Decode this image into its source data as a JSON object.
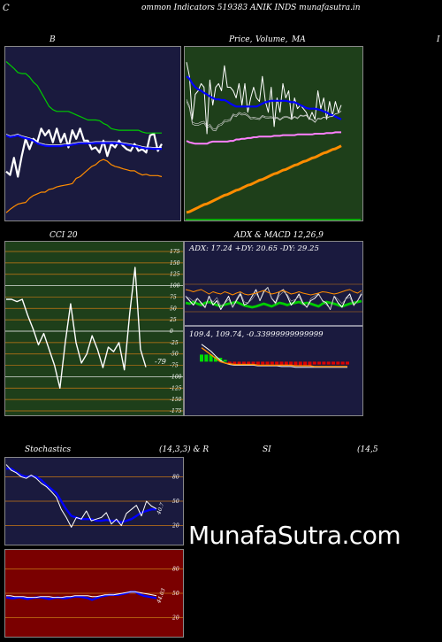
{
  "header": {
    "text": "ommon  Indicators 519383 ANIK INDS munafasutra.in",
    "left_glyph": "C",
    "right_glyph": "I"
  },
  "colors": {
    "navy": "#1a1a3e",
    "green_bg": "#1e3f1a",
    "red_bg": "#7a0000",
    "white_line": "#ffffff",
    "blue_line": "#0000ff",
    "orange_line": "#ff8c00",
    "green_line": "#00cc00",
    "pink_line": "#ff80ff",
    "grid_orange": "#c87814",
    "grid_white": "#ffffff"
  },
  "panels": {
    "bollinger": {
      "title": "B"
    },
    "price": {
      "title_a": "Price,",
      "title_b": "Volume,",
      "title_c": "MA"
    },
    "cci": {
      "title": "CCI 20",
      "ticks": [
        "175",
        "150",
        "125",
        "100",
        "75",
        "50",
        "25",
        "0",
        "-25",
        "-50",
        "-75",
        "-100",
        "-125",
        "-150",
        "-175"
      ],
      "last_label": "-79"
    },
    "adx": {
      "title": "ADX  & MACD 12,26,9",
      "readout": "ADX: 17.24  +DY: 20.65 -DY: 29.25",
      "macd_readout": "109.4,  109.74,  -0.33999999999999"
    },
    "stochastics": {
      "title": "Stochastics",
      "params": "(14,3,3) & R",
      "ticks": [
        "80",
        "50",
        "20"
      ],
      "last_label": "40.7"
    },
    "rsi": {
      "title": "SI",
      "params": "(14,5",
      "ticks": [
        "80",
        "50",
        "20"
      ],
      "last_label": "44.03"
    }
  },
  "watermark": "MunafaSutra.com",
  "chart_data": [
    {
      "type": "line",
      "name": "bollinger",
      "series": [
        {
          "color": "white",
          "values": [
            -160,
            -170,
            -120,
            -175,
            -115,
            -65,
            -95,
            -65,
            -75,
            -35,
            -55,
            -40,
            -75,
            -35,
            -75,
            -50,
            -90,
            -40,
            -65,
            -35,
            -70,
            -70,
            -95,
            -90,
            -105,
            -70,
            -115,
            -80,
            -90,
            -70,
            -85,
            -95,
            -100,
            -80,
            -100,
            -95,
            -105,
            -55,
            -50,
            -100,
            -80
          ]
        },
        {
          "color": "blue",
          "values": [
            -55,
            -60,
            -58,
            -55,
            -60,
            -63,
            -66,
            -70,
            -78,
            -82,
            -85,
            -86,
            -86,
            -86,
            -86,
            -84,
            -84,
            -82,
            -80,
            -78,
            -78,
            -78,
            -78,
            -77,
            -77,
            -77,
            -77,
            -77,
            -77,
            -78,
            -80,
            -82,
            -84,
            -86,
            -88,
            -91,
            -93,
            -93,
            -94,
            -94,
            -94
          ]
        },
        {
          "color": "green",
          "values": [
            160,
            150,
            140,
            128,
            125,
            125,
            115,
            100,
            90,
            70,
            50,
            30,
            20,
            15,
            15,
            15,
            15,
            10,
            5,
            0,
            -5,
            -10,
            -10,
            -10,
            -12,
            -20,
            -25,
            -35,
            -38,
            -40,
            -40,
            -40,
            -40,
            -40,
            -40,
            -45,
            -48,
            -48,
            -48,
            -48,
            -48
          ]
        },
        {
          "color": "orange",
          "values": [
            -280,
            -270,
            -262,
            -255,
            -252,
            -250,
            -238,
            -230,
            -225,
            -220,
            -220,
            -212,
            -210,
            -205,
            -202,
            -200,
            -198,
            -195,
            -180,
            -175,
            -165,
            -155,
            -145,
            -140,
            -130,
            -125,
            -130,
            -140,
            -145,
            -148,
            -152,
            -155,
            -158,
            -158,
            -165,
            -170,
            -168,
            -172,
            -172,
            -172,
            -175
          ]
        }
      ]
    },
    {
      "type": "line",
      "name": "price-volume-ma",
      "series": [
        {
          "color": "white",
          "values": [
            -20,
            -40,
            -100,
            -65,
            -60,
            -50,
            -55,
            -120,
            -45,
            -80,
            -55,
            -50,
            -60,
            -25,
            -55,
            -55,
            -60,
            -70,
            -50,
            -80,
            -50,
            -90,
            -70,
            -55,
            -70,
            -75,
            -40,
            -75,
            -90,
            -55,
            -110,
            -70,
            -90,
            -50,
            -70,
            -60,
            -100,
            -70,
            -85,
            -80,
            -85,
            -90,
            -100,
            -90,
            -100,
            -60,
            -85,
            -70,
            -100,
            -75,
            -95,
            -75,
            -90,
            -80
          ]
        },
        {
          "color": "blue",
          "values": [
            -40,
            -43,
            -50,
            -55,
            -58,
            -60,
            -63,
            -65,
            -68,
            -70,
            -72,
            -72,
            -73,
            -73,
            -75,
            -78,
            -80,
            -82,
            -82,
            -82,
            -82,
            -82,
            -82,
            -82,
            -82,
            -80,
            -78,
            -76,
            -75,
            -74,
            -74,
            -74,
            -74,
            -74,
            -74,
            -75,
            -76,
            -76,
            -78,
            -80,
            -82,
            -84,
            -85,
            -85,
            -85,
            -86,
            -87,
            -89,
            -90,
            -93,
            -94,
            -96,
            -98,
            -100
          ]
        },
        {
          "color": "pink",
          "values": [
            -130,
            -132,
            -133,
            -134,
            -134,
            -134,
            -134,
            -134,
            -132,
            -131,
            -131,
            -131,
            -131,
            -131,
            -131,
            -130,
            -130,
            -128,
            -128,
            -127,
            -127,
            -126,
            -126,
            -125,
            -125,
            -124,
            -124,
            -124,
            -124,
            -124,
            -123,
            -123,
            -123,
            -122,
            -122,
            -122,
            -122,
            -122,
            -121,
            -121,
            -121,
            -121,
            -121,
            -121,
            -120,
            -120,
            -120,
            -120,
            -119,
            -119,
            -119,
            -118,
            -118,
            -118
          ]
        },
        {
          "color": "orange",
          "values": [
            -230,
            -229,
            -227,
            -225,
            -223,
            -221,
            -219,
            -218,
            -216,
            -214,
            -212,
            -210,
            -208,
            -206,
            -205,
            -203,
            -201,
            -199,
            -198,
            -196,
            -194,
            -192,
            -191,
            -189,
            -187,
            -185,
            -184,
            -182,
            -180,
            -178,
            -176,
            -175,
            -173,
            -171,
            -170,
            -168,
            -166,
            -164,
            -163,
            -161,
            -159,
            -158,
            -156,
            -154,
            -153,
            -151,
            -149,
            -147,
            -146,
            -144,
            -142,
            -141,
            -139,
            -137
          ]
        }
      ]
    },
    {
      "type": "line",
      "name": "cci",
      "ylim": [
        -175,
        175
      ],
      "series": [
        {
          "color": "white",
          "values": [
            70,
            70,
            65,
            70,
            35,
            5,
            -30,
            -5,
            -40,
            -75,
            -125,
            -25,
            60,
            -25,
            -70,
            -50,
            -10,
            -40,
            -80,
            -35,
            -45,
            -25,
            -85,
            40,
            140,
            -40,
            -79
          ]
        }
      ]
    },
    {
      "type": "line",
      "name": "adx",
      "series": [
        {
          "color": "green",
          "values": [
            -10,
            -12,
            -8,
            -12,
            -15,
            -10,
            -8,
            -12,
            -15,
            -18,
            -14,
            -12,
            -10,
            -8,
            -12,
            -16,
            -18,
            -20,
            -18,
            -15,
            -12,
            -15,
            -18,
            -14,
            -10,
            -12,
            -15,
            -12,
            -10,
            -8,
            -12,
            -10,
            -12,
            -15,
            -18,
            -12,
            -8,
            -10,
            -12,
            -15,
            -18,
            -15,
            -12,
            -10,
            -8,
            -6
          ]
        },
        {
          "color": "white",
          "values": [
            5,
            -5,
            -15,
            0,
            -10,
            -20,
            5,
            -15,
            -5,
            -25,
            -10,
            5,
            -20,
            -5,
            10,
            -15,
            -10,
            5,
            20,
            -5,
            15,
            25,
            0,
            -10,
            15,
            20,
            5,
            -15,
            -5,
            10,
            -10,
            -20,
            -5,
            0,
            10,
            -5,
            -10,
            -25,
            5,
            -10,
            -20,
            0,
            10,
            -15,
            -5,
            10
          ]
        },
        {
          "color": "orange",
          "values": [
            20,
            18,
            15,
            18,
            20,
            15,
            10,
            15,
            12,
            10,
            15,
            12,
            8,
            12,
            15,
            10,
            8,
            10,
            12,
            15,
            18,
            14,
            10,
            12,
            15,
            18,
            14,
            10,
            12,
            15,
            12,
            10,
            8,
            10,
            12,
            15,
            14,
            12,
            10,
            12,
            15,
            18,
            20,
            15,
            12,
            18
          ]
        }
      ]
    },
    {
      "type": "line",
      "name": "macd",
      "series": [
        {
          "color": "white",
          "values": [
            25,
            20,
            15,
            8,
            2,
            -2,
            -4,
            -5,
            -5,
            -5,
            -5,
            -5,
            -6,
            -6,
            -6,
            -6,
            -6,
            -7,
            -7,
            -7,
            -8,
            -8,
            -8,
            -8,
            -8,
            -8,
            -8,
            -8,
            -8,
            -8,
            -8,
            -8
          ]
        },
        {
          "color": "orange",
          "values": [
            20,
            15,
            10,
            5,
            0,
            -2,
            -3,
            -4,
            -4,
            -4,
            -4,
            -4,
            -5,
            -5,
            -5,
            -5,
            -5,
            -5,
            -5,
            -5,
            -6,
            -6,
            -6,
            -6,
            -7,
            -7,
            -7,
            -7,
            -7,
            -7,
            -7,
            -7
          ]
        }
      ]
    },
    {
      "type": "line",
      "name": "stochastics",
      "ylim": [
        0,
        100
      ],
      "series": [
        {
          "color": "blue",
          "values": [
            90,
            90,
            86,
            82,
            80,
            81,
            80,
            76,
            70,
            65,
            60,
            50,
            40,
            32,
            30,
            28,
            28,
            28,
            26,
            26,
            27,
            26,
            26,
            24,
            26,
            28,
            32,
            36,
            38,
            40,
            40
          ]
        },
        {
          "color": "white",
          "values": [
            95,
            88,
            85,
            80,
            78,
            82,
            78,
            72,
            68,
            62,
            55,
            40,
            30,
            18,
            30,
            28,
            38,
            26,
            28,
            30,
            36,
            22,
            28,
            20,
            35,
            40,
            45,
            32,
            50,
            44,
            40.7
          ]
        }
      ]
    },
    {
      "type": "line",
      "name": "rsi",
      "ylim": [
        0,
        100
      ],
      "series": [
        {
          "color": "blue",
          "values": [
            45,
            44,
            44,
            45,
            44,
            43,
            44,
            45,
            45,
            44,
            43,
            44,
            45,
            44,
            44,
            45,
            46,
            46,
            45,
            44,
            42,
            44,
            46,
            47,
            48,
            48,
            48,
            49,
            50,
            52,
            52,
            49,
            47,
            46,
            45,
            44.03
          ]
        },
        {
          "color": "white",
          "values": [
            47,
            47,
            46,
            46,
            46,
            45,
            45,
            45,
            46,
            46,
            46,
            45,
            45,
            45,
            46,
            46,
            47,
            47,
            47,
            47,
            46,
            46,
            47,
            48,
            48,
            48,
            49,
            50,
            51,
            52,
            52,
            51,
            50,
            49,
            48,
            47
          ]
        }
      ]
    }
  ]
}
